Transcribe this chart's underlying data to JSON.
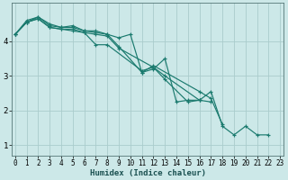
{
  "title": "",
  "xlabel": "Humidex (Indice chaleur)",
  "ylabel": "",
  "background_color": "#cce8e8",
  "grid_color": "#aacccc",
  "line_color": "#1a7a6e",
  "x_values": [
    0,
    1,
    2,
    3,
    4,
    5,
    6,
    7,
    8,
    9,
    10,
    11,
    12,
    13,
    14,
    15,
    16,
    17,
    18,
    19,
    20,
    21,
    22,
    23
  ],
  "series": [
    [
      4.2,
      4.6,
      4.7,
      4.5,
      4.4,
      4.4,
      4.3,
      4.3,
      4.2,
      4.1,
      4.2,
      3.1,
      3.2,
      3.5,
      2.25,
      2.3,
      2.3,
      2.55,
      1.55,
      1.3,
      1.55,
      1.3,
      1.3,
      null
    ],
    [
      4.2,
      4.55,
      4.65,
      4.4,
      4.35,
      4.35,
      4.25,
      3.9,
      3.9,
      null,
      null,
      3.15,
      3.25,
      2.9,
      null,
      2.25,
      2.3,
      null,
      null,
      null,
      null,
      null,
      null,
      null
    ],
    [
      4.2,
      4.55,
      4.7,
      4.45,
      4.4,
      4.45,
      4.3,
      4.25,
      4.2,
      3.85,
      null,
      3.1,
      3.3,
      null,
      null,
      null,
      2.55,
      2.35,
      1.6,
      null,
      null,
      null,
      null,
      null
    ],
    [
      4.2,
      4.55,
      4.65,
      4.4,
      4.35,
      4.3,
      4.25,
      4.2,
      4.15,
      3.8,
      null,
      null,
      3.25,
      3.0,
      null,
      null,
      2.3,
      2.25,
      null,
      null,
      null,
      null,
      null,
      null
    ]
  ],
  "xlim": [
    -0.3,
    23.3
  ],
  "ylim": [
    0.7,
    5.1
  ],
  "yticks": [
    1,
    2,
    3,
    4
  ],
  "xticks": [
    0,
    1,
    2,
    3,
    4,
    5,
    6,
    7,
    8,
    9,
    10,
    11,
    12,
    13,
    14,
    15,
    16,
    17,
    18,
    19,
    20,
    21,
    22,
    23
  ],
  "tick_fontsize": 5.5,
  "xlabel_fontsize": 6.5,
  "lw": 0.85,
  "marker_size": 3.0,
  "marker_lw": 0.85
}
